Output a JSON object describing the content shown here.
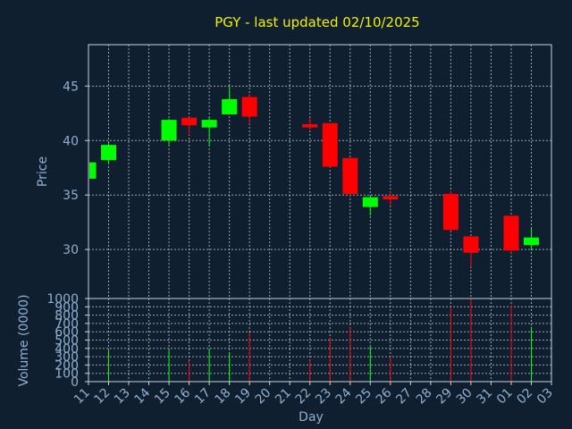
{
  "chart_data": {
    "type": "candlestick",
    "title": "PGY - last updated 02/10/2025",
    "xlabel": "Day",
    "price_panel": {
      "ylabel": "Price",
      "ylim": [
        25.5,
        48.8
      ],
      "yticks": [
        30,
        35,
        40,
        45
      ],
      "grid": true
    },
    "volume_panel": {
      "ylabel": "Volume (0000)",
      "ylim": [
        0,
        1000
      ],
      "yticks": [
        0,
        100,
        200,
        300,
        400,
        500,
        600,
        700,
        800,
        900,
        1000
      ],
      "grid": true
    },
    "x_tick_labels": [
      "11",
      "12",
      "13",
      "14",
      "15",
      "16",
      "17",
      "18",
      "19",
      "20",
      "21",
      "22",
      "23",
      "24",
      "25",
      "26",
      "27",
      "28",
      "29",
      "30",
      "31",
      "01",
      "02",
      "03"
    ],
    "colors": {
      "up": "#00ff00",
      "down": "#ff0000"
    },
    "candles": [
      {
        "day": "11",
        "open": 36.5,
        "high": 38.0,
        "low": 36.5,
        "close": 38.0,
        "volume": 0
      },
      {
        "day": "12",
        "open": 38.2,
        "high": 39.8,
        "low": 37.8,
        "close": 39.6,
        "volume": 380
      },
      {
        "day": "15",
        "open": 40.0,
        "high": 42.0,
        "low": 39.5,
        "close": 41.9,
        "volume": 380
      },
      {
        "day": "16",
        "open": 42.1,
        "high": 42.1,
        "low": 40.5,
        "close": 41.4,
        "volume": 250
      },
      {
        "day": "17",
        "open": 41.2,
        "high": 42.2,
        "low": 39.5,
        "close": 41.9,
        "volume": 400
      },
      {
        "day": "18",
        "open": 42.4,
        "high": 45.0,
        "low": 42.4,
        "close": 43.8,
        "volume": 340
      },
      {
        "day": "19",
        "open": 44.0,
        "high": 44.3,
        "low": 41.5,
        "close": 42.2,
        "volume": 590
      },
      {
        "day": "22",
        "open": 41.5,
        "high": 42.1,
        "low": 41.0,
        "close": 41.2,
        "volume": 260
      },
      {
        "day": "23",
        "open": 41.6,
        "high": 41.6,
        "low": 37.5,
        "close": 37.6,
        "volume": 530
      },
      {
        "day": "24",
        "open": 38.4,
        "high": 38.4,
        "low": 34.8,
        "close": 35.1,
        "volume": 650
      },
      {
        "day": "25",
        "open": 33.9,
        "high": 34.9,
        "low": 33.1,
        "close": 34.8,
        "volume": 430
      },
      {
        "day": "26",
        "open": 34.9,
        "high": 35.3,
        "low": 34.0,
        "close": 34.6,
        "volume": 300
      },
      {
        "day": "29",
        "open": 35.1,
        "high": 35.4,
        "low": 31.7,
        "close": 31.8,
        "volume": 900
      },
      {
        "day": "30",
        "open": 31.2,
        "high": 31.2,
        "low": 28.4,
        "close": 29.7,
        "volume": 1000
      },
      {
        "day": "01",
        "open": 33.1,
        "high": 33.1,
        "low": 29.7,
        "close": 29.9,
        "volume": 920
      },
      {
        "day": "02",
        "open": 30.4,
        "high": 31.9,
        "low": 29.9,
        "close": 31.1,
        "volume": 660
      }
    ]
  }
}
